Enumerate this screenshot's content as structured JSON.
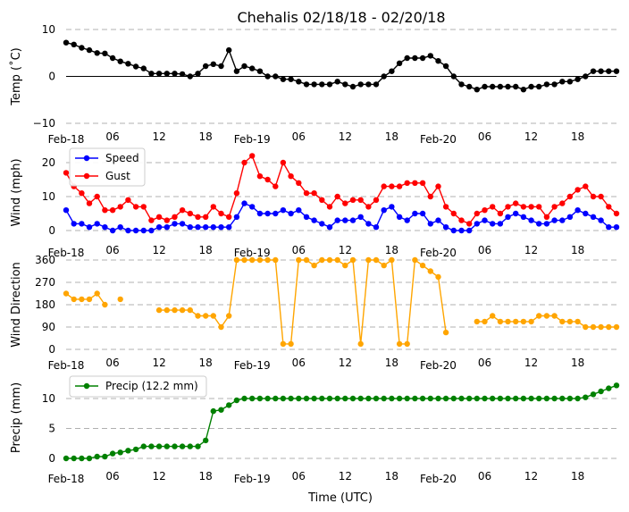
{
  "chart_data": {
    "title": "Chehalis 02/18/18 - 02/20/18",
    "xlabel": "Time (UTC)",
    "x_hours_range": [
      0,
      71
    ],
    "x_ticks": [
      {
        "hour": 0,
        "label": "Feb-18",
        "kind": "date"
      },
      {
        "hour": 6,
        "label": "06",
        "kind": "hour"
      },
      {
        "hour": 12,
        "label": "12",
        "kind": "hour"
      },
      {
        "hour": 18,
        "label": "18",
        "kind": "hour"
      },
      {
        "hour": 24,
        "label": "Feb-19",
        "kind": "date"
      },
      {
        "hour": 30,
        "label": "06",
        "kind": "hour"
      },
      {
        "hour": 36,
        "label": "12",
        "kind": "hour"
      },
      {
        "hour": 42,
        "label": "18",
        "kind": "hour"
      },
      {
        "hour": 48,
        "label": "Feb-20",
        "kind": "date"
      },
      {
        "hour": 54,
        "label": "06",
        "kind": "hour"
      },
      {
        "hour": 60,
        "label": "12",
        "kind": "hour"
      },
      {
        "hour": 66,
        "label": "18",
        "kind": "hour"
      }
    ],
    "panels": [
      {
        "id": "temp",
        "type": "line",
        "ylabel": "Temp (˚C)",
        "ylim": [
          -10,
          10
        ],
        "yticks": [
          -10,
          0,
          10
        ],
        "zero_line": true,
        "grid": true,
        "series": [
          {
            "name": "Temp",
            "color": "#000000",
            "values": [
              7.2,
              6.8,
              6.1,
              5.6,
              5.0,
              4.9,
              3.9,
              3.2,
              2.7,
              2.1,
              1.7,
              0.6,
              0.6,
              0.6,
              0.6,
              0.5,
              0.0,
              0.6,
              2.2,
              2.6,
              2.2,
              5.6,
              1.1,
              2.2,
              1.7,
              1.1,
              0.0,
              0.0,
              -0.6,
              -0.6,
              -1.1,
              -1.7,
              -1.7,
              -1.7,
              -1.7,
              -1.1,
              -1.7,
              -2.2,
              -1.7,
              -1.7,
              -1.7,
              0.0,
              1.1,
              2.8,
              3.9,
              3.9,
              3.9,
              4.4,
              3.3,
              2.2,
              0.0,
              -1.7,
              -2.2,
              -2.8,
              -2.2,
              -2.2,
              -2.2,
              -2.2,
              -2.2,
              -2.8,
              -2.2,
              -2.2,
              -1.7,
              -1.7,
              -1.1,
              -1.1,
              -0.6,
              0.0,
              1.1,
              1.1,
              1.1,
              1.1
            ]
          }
        ]
      },
      {
        "id": "wind",
        "type": "line",
        "ylabel": "Wind (mph)",
        "ylim": [
          -2,
          24
        ],
        "yticks": [
          0,
          10,
          20
        ],
        "grid": true,
        "legend": "top-left",
        "series": [
          {
            "name": "Speed",
            "color": "#0000ff",
            "values": [
              6,
              2,
              2,
              1,
              2,
              1,
              0,
              1,
              0,
              0,
              0,
              0,
              1,
              1,
              2,
              2,
              1,
              1,
              1,
              1,
              1,
              1,
              4,
              8,
              7,
              5,
              5,
              5,
              6,
              5,
              6,
              4,
              3,
              2,
              1,
              3,
              3,
              3,
              4,
              2,
              1,
              6,
              7,
              4,
              3,
              5,
              5,
              2,
              3,
              1,
              0,
              0,
              0,
              2,
              3,
              2,
              2,
              4,
              5,
              4,
              3,
              2,
              2,
              3,
              3,
              4,
              6,
              5,
              4,
              3,
              1,
              1
            ]
          },
          {
            "name": "Gust",
            "color": "#ff0000",
            "values": [
              17,
              13,
              11,
              8,
              10,
              6,
              6,
              7,
              9,
              7,
              7,
              3,
              4,
              3,
              4,
              6,
              5,
              4,
              4,
              7,
              5,
              4,
              11,
              20,
              22,
              16,
              15,
              13,
              20,
              16,
              14,
              11,
              11,
              9,
              7,
              10,
              8,
              9,
              9,
              7,
              9,
              13,
              13,
              13,
              14,
              14,
              14,
              10,
              13,
              7,
              5,
              3,
              2,
              5,
              6,
              7,
              5,
              7,
              8,
              7,
              7,
              7,
              4,
              7,
              8,
              10,
              12,
              13,
              10,
              10,
              7,
              5
            ]
          }
        ]
      },
      {
        "id": "dir",
        "type": "line",
        "ylabel": "Wind Direction",
        "ylim": [
          0,
          360
        ],
        "yticks": [
          0,
          90,
          180,
          270,
          360
        ],
        "grid": true,
        "series": [
          {
            "name": "Direction",
            "color": "#ffa500",
            "values": [
              225,
              202,
              202,
              202,
              225,
              180,
              null,
              202,
              null,
              null,
              null,
              null,
              158,
              158,
              158,
              158,
              158,
              135,
              135,
              135,
              90,
              135,
              360,
              360,
              360,
              360,
              360,
              360,
              22,
              22,
              360,
              360,
              338,
              360,
              360,
              360,
              338,
              360,
              22,
              360,
              360,
              338,
              360,
              22,
              22,
              360,
              338,
              315,
              292,
              68,
              null,
              null,
              null,
              112,
              112,
              135,
              112,
              112,
              112,
              112,
              112,
              135,
              135,
              135,
              112,
              112,
              112,
              90,
              90,
              90,
              90,
              90
            ]
          }
        ]
      },
      {
        "id": "precip",
        "type": "line",
        "ylabel": "Precip (mm)",
        "ylim": [
          -1,
          14
        ],
        "yticks": [
          0,
          5,
          10
        ],
        "grid": true,
        "legend": "top-left",
        "series": [
          {
            "name": "Precip (12.2 mm)",
            "color": "#008000",
            "values": [
              0.0,
              0.0,
              0.0,
              0.0,
              0.3,
              0.3,
              0.8,
              1.0,
              1.3,
              1.5,
              2.0,
              2.0,
              2.0,
              2.0,
              2.0,
              2.0,
              2.0,
              2.0,
              3.0,
              7.9,
              8.1,
              8.9,
              9.7,
              10.0,
              10.0,
              10.0,
              10.0,
              10.0,
              10.0,
              10.0,
              10.0,
              10.0,
              10.0,
              10.0,
              10.0,
              10.0,
              10.0,
              10.0,
              10.0,
              10.0,
              10.0,
              10.0,
              10.0,
              10.0,
              10.0,
              10.0,
              10.0,
              10.0,
              10.0,
              10.0,
              10.0,
              10.0,
              10.0,
              10.0,
              10.0,
              10.0,
              10.0,
              10.0,
              10.0,
              10.0,
              10.0,
              10.0,
              10.0,
              10.0,
              10.0,
              10.0,
              10.0,
              10.2,
              10.7,
              11.2,
              11.7,
              12.2
            ]
          }
        ]
      }
    ]
  }
}
